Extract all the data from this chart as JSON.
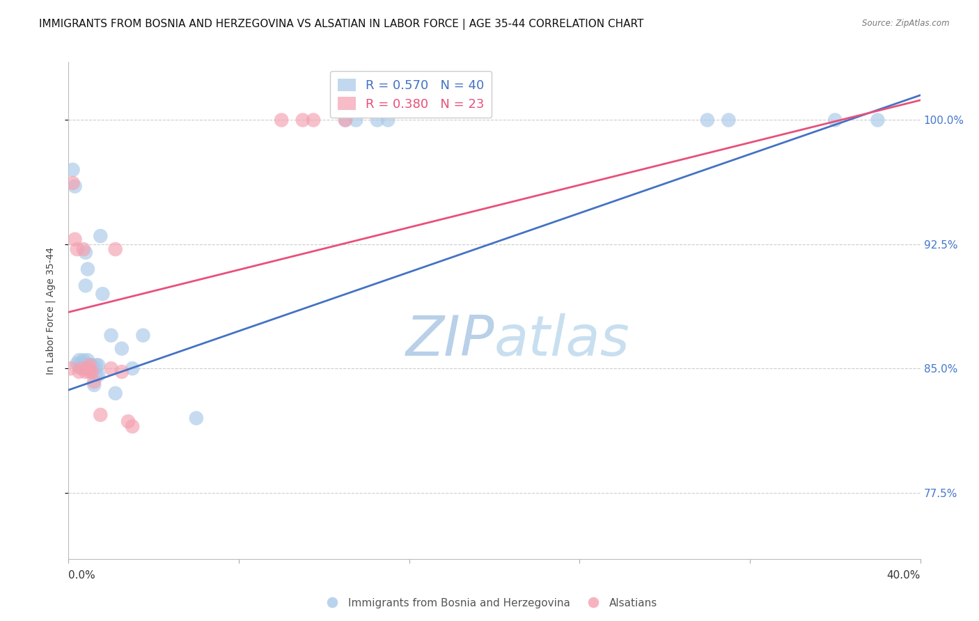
{
  "title": "IMMIGRANTS FROM BOSNIA AND HERZEGOVINA VS ALSATIAN IN LABOR FORCE | AGE 35-44 CORRELATION CHART",
  "source": "Source: ZipAtlas.com",
  "ylabel": "In Labor Force | Age 35-44",
  "ytick_values": [
    0.775,
    0.85,
    0.925,
    1.0
  ],
  "ytick_labels": [
    "77.5%",
    "85.0%",
    "92.5%",
    "100.0%"
  ],
  "xmin": 0.0,
  "xmax": 0.4,
  "ymin": 0.735,
  "ymax": 1.035,
  "legend_blue_r": "R = 0.570",
  "legend_blue_n": "N = 40",
  "legend_pink_r": "R = 0.380",
  "legend_pink_n": "N = 23",
  "blue_color": "#a8c8e8",
  "pink_color": "#f4a0b0",
  "blue_line_color": "#4472c4",
  "pink_line_color": "#e8507a",
  "watermark_zip": "ZIP",
  "watermark_atlas": "atlas",
  "blue_points_x": [
    0.002,
    0.003,
    0.004,
    0.005,
    0.005,
    0.006,
    0.006,
    0.007,
    0.007,
    0.008,
    0.008,
    0.009,
    0.009,
    0.01,
    0.01,
    0.01,
    0.011,
    0.011,
    0.012,
    0.012,
    0.013,
    0.013,
    0.014,
    0.014,
    0.015,
    0.016,
    0.02,
    0.022,
    0.025,
    0.03,
    0.035,
    0.06,
    0.13,
    0.135,
    0.145,
    0.15,
    0.3,
    0.31,
    0.36,
    0.38
  ],
  "blue_points_y": [
    0.97,
    0.96,
    0.853,
    0.855,
    0.851,
    0.853,
    0.851,
    0.853,
    0.855,
    0.92,
    0.9,
    0.855,
    0.91,
    0.85,
    0.851,
    0.852,
    0.851,
    0.852,
    0.84,
    0.85,
    0.846,
    0.852,
    0.846,
    0.852,
    0.93,
    0.895,
    0.87,
    0.835,
    0.862,
    0.85,
    0.87,
    0.82,
    1.0,
    1.0,
    1.0,
    1.0,
    1.0,
    1.0,
    1.0,
    1.0
  ],
  "pink_points_x": [
    0.001,
    0.002,
    0.003,
    0.004,
    0.005,
    0.006,
    0.007,
    0.008,
    0.009,
    0.01,
    0.01,
    0.011,
    0.012,
    0.015,
    0.02,
    0.022,
    0.025,
    0.028,
    0.03,
    0.1,
    0.11,
    0.115,
    0.13
  ],
  "pink_points_y": [
    0.85,
    0.962,
    0.928,
    0.922,
    0.848,
    0.85,
    0.922,
    0.848,
    0.85,
    0.848,
    0.852,
    0.848,
    0.842,
    0.822,
    0.85,
    0.922,
    0.848,
    0.818,
    0.815,
    1.0,
    1.0,
    1.0,
    1.0
  ],
  "blue_line_x0": 0.0,
  "blue_line_y0": 0.837,
  "blue_line_x1": 0.4,
  "blue_line_y1": 1.015,
  "pink_line_x0": 0.0,
  "pink_line_y0": 0.884,
  "pink_line_x1": 0.4,
  "pink_line_y1": 1.012,
  "grid_color": "#cccccc",
  "background_color": "#ffffff",
  "title_fontsize": 11,
  "axis_label_fontsize": 10,
  "tick_fontsize": 11,
  "watermark_color": "#c8dff0",
  "watermark_fontsize_zip": 58,
  "watermark_fontsize_atlas": 58
}
